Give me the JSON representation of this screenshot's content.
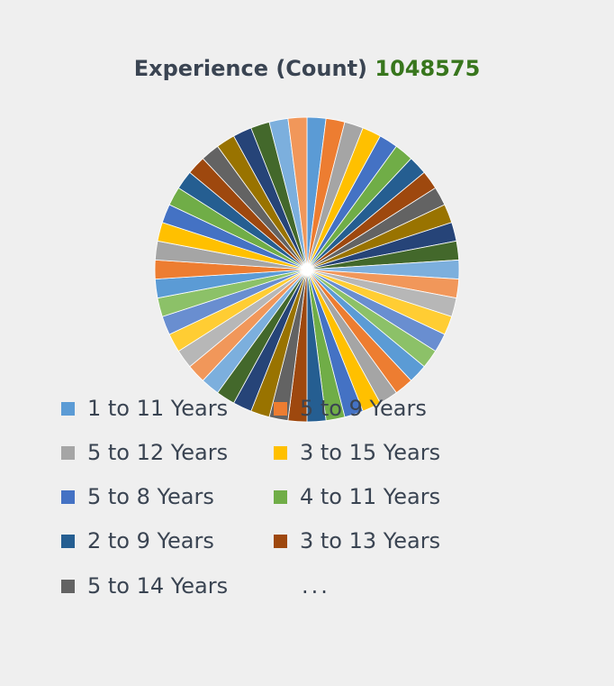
{
  "chart_data": {
    "type": "pie",
    "title": "Experience (Count)",
    "total": "1048575",
    "legend_more": "...",
    "legend_position": "bottom",
    "slice_count": 50,
    "palette": [
      "#5b9bd5",
      "#ed7d31",
      "#a5a5a5",
      "#ffc000",
      "#4472c4",
      "#70ad47",
      "#255e91",
      "#9e480e",
      "#636363",
      "#997300",
      "#264478",
      "#43682b",
      "#7cafdd",
      "#f1975a",
      "#b7b7b7",
      "#ffcd33",
      "#698ed0",
      "#8cc168"
    ],
    "legend": [
      {
        "label": "1 to 11 Years",
        "color": "#5b9bd5"
      },
      {
        "label": "5 to 9 Years",
        "color": "#ed7d31"
      },
      {
        "label": "5 to 12 Years",
        "color": "#a5a5a5"
      },
      {
        "label": "3 to 15 Years",
        "color": "#ffc000"
      },
      {
        "label": "5 to 8 Years",
        "color": "#4472c4"
      },
      {
        "label": "4 to 11 Years",
        "color": "#70ad47"
      },
      {
        "label": "2 to 9 Years",
        "color": "#255e91"
      },
      {
        "label": "3 to 13 Years",
        "color": "#9e480e"
      },
      {
        "label": "5 to 14 Years",
        "color": "#636363"
      }
    ]
  }
}
